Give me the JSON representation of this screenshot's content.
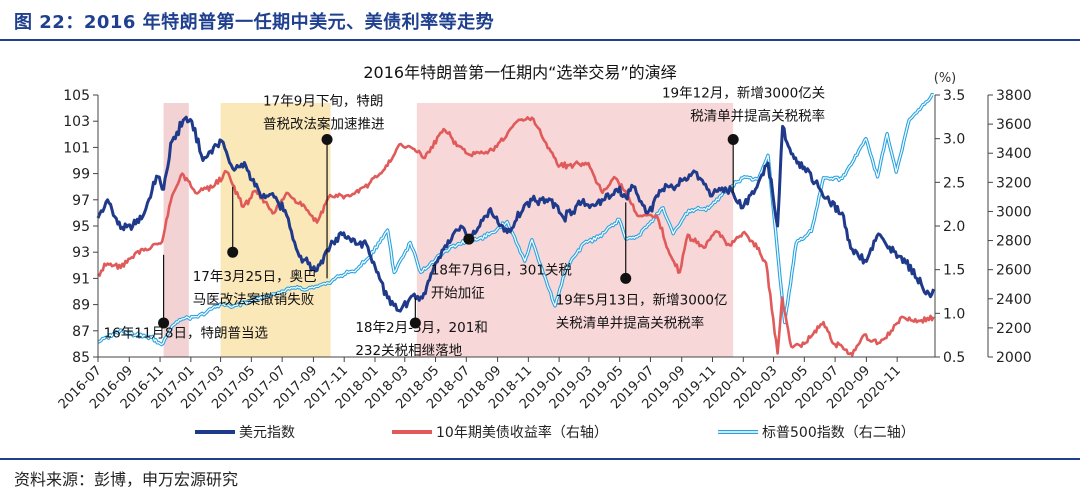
{
  "figure": {
    "title": "图 22：2016 年特朗普第一任期中美元、美债利率等走势",
    "source": "资料来源：彭博，申万宏源研究"
  },
  "chart_data": {
    "type": "line",
    "title": "2016年特朗普第一任期内“选举交易”的演绎",
    "unit_label": "(%)",
    "x_ticks": [
      "2016-07",
      "2016-09",
      "2016-11",
      "2017-01",
      "2017-03",
      "2017-05",
      "2017-07",
      "2017-09",
      "2017-11",
      "2018-01",
      "2018-03",
      "2018-05",
      "2018-07",
      "2018-09",
      "2018-11",
      "2019-01",
      "2019-03",
      "2019-05",
      "2019-07",
      "2019-09",
      "2019-11",
      "2020-01",
      "2020-03",
      "2020-05",
      "2020-07",
      "2020-09",
      "2020-11"
    ],
    "x_range": [
      "2016-07-01",
      "2021-01-15"
    ],
    "y_left": {
      "range": [
        85,
        105
      ],
      "ticks": [
        "85",
        "87",
        "89",
        "91",
        "93",
        "95",
        "97",
        "99",
        "101",
        "103",
        "105"
      ]
    },
    "y_right": {
      "range": [
        0.5,
        3.5
      ],
      "ticks": [
        "0.5",
        "1.0",
        "1.5",
        "2.0",
        "2.5",
        "3.0",
        "3.5"
      ]
    },
    "y_right2": {
      "range": [
        2000,
        3800
      ],
      "ticks": [
        "2000",
        "2200",
        "2400",
        "2600",
        "2800",
        "3000",
        "3200",
        "3400",
        "3600",
        "3800"
      ]
    },
    "series": [
      {
        "name": "美元指数",
        "axis": "left",
        "color": "#1f3a8a",
        "style": "solid",
        "points": [
          [
            "2016-07-01",
            95.6
          ],
          [
            "2016-07-20",
            97.0
          ],
          [
            "2016-08-15",
            94.8
          ],
          [
            "2016-09-08",
            95.0
          ],
          [
            "2016-10-01",
            96.0
          ],
          [
            "2016-10-25",
            98.8
          ],
          [
            "2016-11-08",
            97.8
          ],
          [
            "2016-11-25",
            101.5
          ],
          [
            "2016-12-20",
            103.2
          ],
          [
            "2017-01-03",
            103.0
          ],
          [
            "2017-01-25",
            100.0
          ],
          [
            "2017-02-15",
            101.0
          ],
          [
            "2017-03-03",
            101.5
          ],
          [
            "2017-03-25",
            99.4
          ],
          [
            "2017-04-20",
            99.6
          ],
          [
            "2017-05-20",
            97.2
          ],
          [
            "2017-06-15",
            97.2
          ],
          [
            "2017-07-10",
            95.8
          ],
          [
            "2017-08-01",
            93.0
          ],
          [
            "2017-09-08",
            91.6
          ],
          [
            "2017-09-25",
            93.0
          ],
          [
            "2017-10-25",
            94.5
          ],
          [
            "2017-11-15",
            93.8
          ],
          [
            "2017-12-15",
            93.6
          ],
          [
            "2018-01-10",
            91.0
          ],
          [
            "2018-02-01",
            89.0
          ],
          [
            "2018-02-20",
            88.5
          ],
          [
            "2018-03-20",
            89.8
          ],
          [
            "2018-04-05",
            89.5
          ],
          [
            "2018-04-25",
            91.5
          ],
          [
            "2018-05-20",
            93.5
          ],
          [
            "2018-06-20",
            95.0
          ],
          [
            "2018-07-06",
            94.0
          ],
          [
            "2018-08-15",
            96.2
          ],
          [
            "2018-09-20",
            94.5
          ],
          [
            "2018-10-30",
            96.8
          ],
          [
            "2018-11-15",
            96.9
          ],
          [
            "2018-12-15",
            97.0
          ],
          [
            "2019-01-10",
            95.6
          ],
          [
            "2019-02-15",
            96.8
          ],
          [
            "2019-03-15",
            96.6
          ],
          [
            "2019-04-25",
            97.8
          ],
          [
            "2019-05-13",
            97.2
          ],
          [
            "2019-05-28",
            98.0
          ],
          [
            "2019-06-25",
            96.0
          ],
          [
            "2019-07-25",
            97.8
          ],
          [
            "2019-08-20",
            98.0
          ],
          [
            "2019-09-25",
            99.2
          ],
          [
            "2019-10-15",
            98.2
          ],
          [
            "2019-10-31",
            97.3
          ],
          [
            "2019-11-20",
            97.9
          ],
          [
            "2019-12-12",
            97.5
          ],
          [
            "2019-12-31",
            96.4
          ],
          [
            "2020-01-25",
            97.8
          ],
          [
            "2020-02-19",
            99.8
          ],
          [
            "2020-03-09",
            95.0
          ],
          [
            "2020-03-19",
            102.6
          ],
          [
            "2020-04-05",
            100.5
          ],
          [
            "2020-05-01",
            99.5
          ],
          [
            "2020-06-01",
            97.8
          ],
          [
            "2020-06-20",
            96.8
          ],
          [
            "2020-07-15",
            96.0
          ],
          [
            "2020-08-01",
            93.3
          ],
          [
            "2020-09-01",
            92.3
          ],
          [
            "2020-09-25",
            94.4
          ],
          [
            "2020-10-20",
            93.0
          ],
          [
            "2020-11-15",
            92.5
          ],
          [
            "2020-12-10",
            91.0
          ],
          [
            "2021-01-06",
            89.6
          ],
          [
            "2021-01-12",
            90.2
          ]
        ]
      },
      {
        "name": "10年期美债收益率（右轴）",
        "axis": "right",
        "color": "#e05a5a",
        "style": "solid",
        "points": [
          [
            "2016-07-01",
            1.45
          ],
          [
            "2016-07-20",
            1.57
          ],
          [
            "2016-08-15",
            1.52
          ],
          [
            "2016-09-15",
            1.7
          ],
          [
            "2016-10-15",
            1.76
          ],
          [
            "2016-11-05",
            1.82
          ],
          [
            "2016-11-25",
            2.35
          ],
          [
            "2016-12-15",
            2.6
          ],
          [
            "2017-01-10",
            2.38
          ],
          [
            "2017-02-15",
            2.45
          ],
          [
            "2017-03-13",
            2.62
          ],
          [
            "2017-04-15",
            2.22
          ],
          [
            "2017-05-10",
            2.4
          ],
          [
            "2017-06-15",
            2.15
          ],
          [
            "2017-07-10",
            2.38
          ],
          [
            "2017-08-15",
            2.22
          ],
          [
            "2017-09-08",
            2.04
          ],
          [
            "2017-10-01",
            2.33
          ],
          [
            "2017-11-15",
            2.35
          ],
          [
            "2017-12-20",
            2.48
          ],
          [
            "2018-01-20",
            2.65
          ],
          [
            "2018-02-21",
            2.94
          ],
          [
            "2018-03-20",
            2.88
          ],
          [
            "2018-04-10",
            2.78
          ],
          [
            "2018-05-17",
            3.11
          ],
          [
            "2018-06-15",
            2.92
          ],
          [
            "2018-07-06",
            2.82
          ],
          [
            "2018-08-15",
            2.86
          ],
          [
            "2018-09-15",
            3.0
          ],
          [
            "2018-10-10",
            3.2
          ],
          [
            "2018-11-08",
            3.24
          ],
          [
            "2018-11-30",
            3.0
          ],
          [
            "2018-12-31",
            2.68
          ],
          [
            "2019-01-30",
            2.7
          ],
          [
            "2019-02-28",
            2.72
          ],
          [
            "2019-03-28",
            2.38
          ],
          [
            "2019-04-20",
            2.56
          ],
          [
            "2019-05-13",
            2.4
          ],
          [
            "2019-06-05",
            2.12
          ],
          [
            "2019-07-15",
            2.1
          ],
          [
            "2019-08-05",
            1.73
          ],
          [
            "2019-08-28",
            1.47
          ],
          [
            "2019-09-13",
            1.9
          ],
          [
            "2019-10-15",
            1.75
          ],
          [
            "2019-11-08",
            1.94
          ],
          [
            "2019-12-05",
            1.78
          ],
          [
            "2019-12-31",
            1.92
          ],
          [
            "2020-01-20",
            1.82
          ],
          [
            "2020-02-15",
            1.58
          ],
          [
            "2020-03-09",
            0.54
          ],
          [
            "2020-03-18",
            1.18
          ],
          [
            "2020-04-05",
            0.62
          ],
          [
            "2020-05-01",
            0.65
          ],
          [
            "2020-06-08",
            0.9
          ],
          [
            "2020-06-25",
            0.67
          ],
          [
            "2020-07-15",
            0.62
          ],
          [
            "2020-08-04",
            0.52
          ],
          [
            "2020-08-25",
            0.74
          ],
          [
            "2020-09-25",
            0.66
          ],
          [
            "2020-10-20",
            0.8
          ],
          [
            "2020-11-10",
            0.96
          ],
          [
            "2020-12-10",
            0.9
          ],
          [
            "2021-01-12",
            0.96
          ]
        ]
      },
      {
        "name": "标普500指数（右二轴）",
        "axis": "right2",
        "color": "#29a3e0",
        "style": "double",
        "points": [
          [
            "2016-07-01",
            2102
          ],
          [
            "2016-08-15",
            2185
          ],
          [
            "2016-09-15",
            2150
          ],
          [
            "2016-10-15",
            2135
          ],
          [
            "2016-11-04",
            2085
          ],
          [
            "2016-11-25",
            2213
          ],
          [
            "2016-12-15",
            2262
          ],
          [
            "2017-01-15",
            2275
          ],
          [
            "2017-02-28",
            2364
          ],
          [
            "2017-03-25",
            2345
          ],
          [
            "2017-05-01",
            2388
          ],
          [
            "2017-06-15",
            2432
          ],
          [
            "2017-07-25",
            2477
          ],
          [
            "2017-08-15",
            2460
          ],
          [
            "2017-09-25",
            2500
          ],
          [
            "2017-10-25",
            2560
          ],
          [
            "2017-11-25",
            2600
          ],
          [
            "2017-12-20",
            2683
          ],
          [
            "2018-01-26",
            2872
          ],
          [
            "2018-02-08",
            2581
          ],
          [
            "2018-03-12",
            2786
          ],
          [
            "2018-04-02",
            2582
          ],
          [
            "2018-05-15",
            2712
          ],
          [
            "2018-06-15",
            2779
          ],
          [
            "2018-07-15",
            2801
          ],
          [
            "2018-08-15",
            2840
          ],
          [
            "2018-09-20",
            2930
          ],
          [
            "2018-10-25",
            2658
          ],
          [
            "2018-11-08",
            2806
          ],
          [
            "2018-11-25",
            2633
          ],
          [
            "2018-12-24",
            2351
          ],
          [
            "2019-01-15",
            2610
          ],
          [
            "2019-02-20",
            2784
          ],
          [
            "2019-03-20",
            2824
          ],
          [
            "2019-04-30",
            2945
          ],
          [
            "2019-05-13",
            2812
          ],
          [
            "2019-06-05",
            2826
          ],
          [
            "2019-07-26",
            3025
          ],
          [
            "2019-08-15",
            2847
          ],
          [
            "2019-09-15",
            3007
          ],
          [
            "2019-10-25",
            3022
          ],
          [
            "2019-11-25",
            3133
          ],
          [
            "2019-12-31",
            3230
          ],
          [
            "2020-01-31",
            3225
          ],
          [
            "2020-02-19",
            3386
          ],
          [
            "2020-03-23",
            2237
          ],
          [
            "2020-04-15",
            2783
          ],
          [
            "2020-05-15",
            2863
          ],
          [
            "2020-06-08",
            3232
          ],
          [
            "2020-07-15",
            3226
          ],
          [
            "2020-08-31",
            3500
          ],
          [
            "2020-09-23",
            3237
          ],
          [
            "2020-10-12",
            3534
          ],
          [
            "2020-10-30",
            3270
          ],
          [
            "2020-11-25",
            3630
          ],
          [
            "2020-12-31",
            3756
          ],
          [
            "2021-01-12",
            3800
          ]
        ]
      }
    ],
    "highlights": [
      {
        "start": "2016-11-08",
        "end": "2016-12-28",
        "color": "#f3d2d4"
      },
      {
        "start": "2017-03-01",
        "end": "2017-10-05",
        "color": "#fbe8b9"
      },
      {
        "start": "2018-03-25",
        "end": "2019-12-12",
        "color": "#f7d7d8"
      }
    ],
    "annotations": [
      {
        "date": "2016-11-08",
        "value": 87.6,
        "stem_to": 92.8,
        "lines": [
          "16年11月8日，特朗普当选"
        ],
        "anchor": "start",
        "dx": -60,
        "label_value": 86.5
      },
      {
        "date": "2017-03-25",
        "value": 93.0,
        "stem_to": 98.0,
        "lines": [
          "17年3月25日，奥巴",
          "马医改法案撤销失败"
        ],
        "anchor": "start",
        "dx": -40,
        "label_value": 90.8
      },
      {
        "date": "2017-09-28",
        "value": 101.6,
        "stem_to": 91.0,
        "lines": [
          "17年9月下旬，特朗",
          "普税改法案加速推进"
        ],
        "anchor": "start",
        "dx": -64,
        "label_value": 104.2
      },
      {
        "date": "2018-03-22",
        "value": 87.6,
        "stem_to": 89.5,
        "lines": [
          "18年2月-3月，201和",
          "232关税相继落地"
        ],
        "anchor": "start",
        "dx": -60,
        "label_value": 86.9
      },
      {
        "date": "2018-07-06",
        "value": 94.0,
        "stem_to": 94.0,
        "lines": [
          "18年7月6日，301关税",
          "开始加征"
        ],
        "anchor": "start",
        "dx": -38,
        "label_value": 91.3
      },
      {
        "date": "2019-05-13",
        "value": 91.0,
        "stem_to": 96.8,
        "lines": [
          "19年5月13日，新增3000亿",
          "关税清单并提高关税税率"
        ],
        "anchor": "start",
        "dx": -70,
        "label_value": 89.0
      },
      {
        "date": "2019-12-12",
        "value": 101.6,
        "stem_to": 97.5,
        "lines": [
          "19年12月，新增3000亿关",
          "税清单并提高关税税率"
        ],
        "anchor": "end",
        "dx": 92,
        "label_value": 104.8
      }
    ]
  }
}
